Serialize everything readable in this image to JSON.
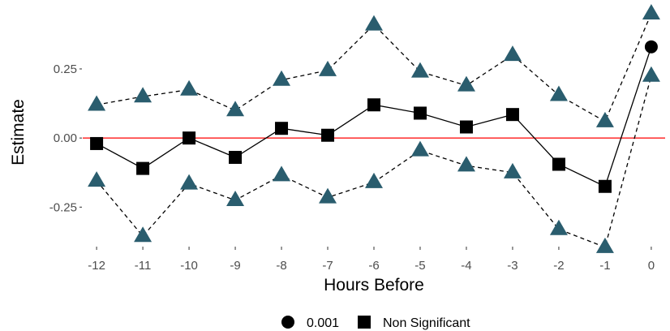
{
  "chart_data": {
    "type": "line",
    "xlabel": "Hours Before",
    "ylabel": "Estimate",
    "x": [
      -12,
      -11,
      -10,
      -9,
      -8,
      -7,
      -6,
      -5,
      -4,
      -3,
      -2,
      -1,
      0
    ],
    "x_ticks": [
      "-12",
      "-11",
      "-10",
      "-9",
      "-8",
      "-7",
      "-6",
      "-5",
      "-4",
      "-3",
      "-2",
      "-1",
      "0"
    ],
    "y_ticks": [
      {
        "value": -0.25,
        "label": "-0.25"
      },
      {
        "value": 0.0,
        "label": "0.00"
      },
      {
        "value": 0.25,
        "label": "0.25"
      }
    ],
    "xlim": [
      -12.3,
      0.3
    ],
    "ylim": [
      -0.39,
      0.47
    ],
    "grid": false,
    "reference_line": {
      "y": 0,
      "color": "#ff0000"
    },
    "estimate": [
      -0.02,
      -0.11,
      0.0,
      -0.07,
      0.035,
      0.01,
      0.12,
      0.09,
      0.04,
      0.085,
      -0.095,
      -0.175,
      0.33
    ],
    "upper_ci": [
      0.12,
      0.15,
      0.175,
      0.1,
      0.21,
      0.245,
      0.41,
      0.24,
      0.19,
      0.3,
      0.155,
      0.06,
      0.45
    ],
    "lower_ci": [
      -0.155,
      -0.355,
      -0.165,
      -0.225,
      -0.135,
      -0.215,
      -0.16,
      -0.045,
      -0.1,
      -0.125,
      -0.33,
      -0.395,
      0.225
    ],
    "significance": [
      "Non Significant",
      "Non Significant",
      "Non Significant",
      "Non Significant",
      "Non Significant",
      "Non Significant",
      "Non Significant",
      "Non Significant",
      "Non Significant",
      "Non Significant",
      "Non Significant",
      "Non Significant",
      "0.001"
    ],
    "legend": {
      "position": "bottom",
      "items": [
        {
          "label": "0.001",
          "shape": "circle"
        },
        {
          "label": "Non Significant",
          "shape": "square"
        }
      ]
    },
    "colors": {
      "ci_marker": "#2a5d6e",
      "point": "#000000",
      "zero_line": "#ff0000",
      "tick_label": "#4d4d4d"
    }
  }
}
